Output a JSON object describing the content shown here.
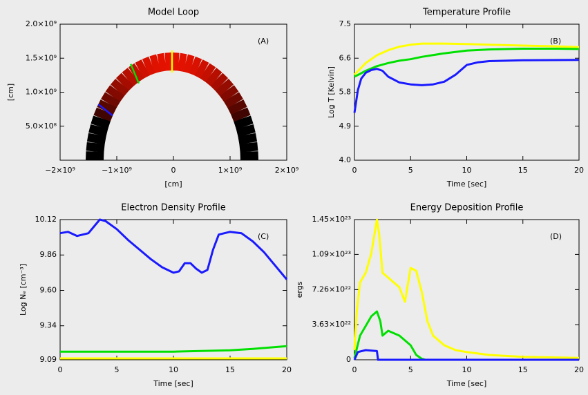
{
  "chart_data": [
    {
      "type": "loop",
      "title": "Model Loop",
      "xlabel": "[cm]",
      "ylabel": "[cm]",
      "annotation": "(A)",
      "xlim": [
        -2000000000.0,
        2000000000.0
      ],
      "ylim": [
        0,
        2000000000.0
      ],
      "xticks": [
        {
          "value": -2000000000.0,
          "label": "−2×10⁹"
        },
        {
          "value": -1000000000.0,
          "label": "−1×10⁹"
        },
        0,
        {
          "value": 1000000000.0,
          "label": "1×10⁹"
        },
        {
          "value": 2000000000.0,
          "label": "2×10⁹"
        }
      ],
      "yticks": [
        {
          "value": 500000000.0,
          "label": "5.0×10⁸"
        },
        {
          "value": 1000000000.0,
          "label": "1.0×10⁹"
        },
        {
          "value": 1500000000.0,
          "label": "1.5×10⁹"
        },
        {
          "value": 2000000000.0,
          "label": "2.0×10⁹"
        }
      ]
    },
    {
      "type": "line",
      "title": "Temperature Profile",
      "xlabel": "Time [sec]",
      "ylabel": "Log T [Kelvin]",
      "annotation": "(B)",
      "xlim": [
        0,
        20
      ],
      "ylim": [
        4,
        7.5
      ],
      "xticks": [
        0,
        5,
        10,
        15,
        20
      ],
      "yticks": [
        {
          "value": 4,
          "label": "4.0"
        },
        {
          "value": 4.875,
          "label": "4.9"
        },
        {
          "value": 5.75,
          "label": "5.8"
        },
        {
          "value": 6.625,
          "label": "6.6"
        },
        7.5
      ],
      "series": [
        {
          "color": "#ffff00",
          "x": [
            0,
            0.5,
            1,
            2,
            3,
            4,
            5,
            6,
            8,
            10,
            12,
            15,
            18,
            20
          ],
          "values": [
            6.2,
            6.35,
            6.5,
            6.7,
            6.83,
            6.92,
            6.97,
            7.0,
            7.0,
            6.99,
            6.97,
            6.95,
            6.93,
            6.91
          ]
        },
        {
          "color": "#00e000",
          "x": [
            0,
            0.5,
            1,
            2,
            3,
            4,
            5,
            6,
            8,
            10,
            12,
            15,
            18,
            20
          ],
          "values": [
            6.15,
            6.22,
            6.3,
            6.42,
            6.5,
            6.56,
            6.6,
            6.66,
            6.75,
            6.82,
            6.85,
            6.87,
            6.87,
            6.86
          ]
        },
        {
          "color": "#1a1aff",
          "x": [
            0,
            0.3,
            0.6,
            1,
            1.5,
            2,
            2.5,
            3,
            4,
            5,
            6,
            7,
            8,
            9,
            10,
            11,
            12,
            15,
            20
          ],
          "values": [
            5.22,
            5.8,
            6.1,
            6.25,
            6.32,
            6.35,
            6.3,
            6.15,
            6.0,
            5.95,
            5.93,
            5.95,
            6.02,
            6.2,
            6.45,
            6.52,
            6.55,
            6.57,
            6.58
          ]
        }
      ]
    },
    {
      "type": "line",
      "title": "Electron Density Profile",
      "xlabel": "Time [sec]",
      "ylabel": "Log Nₑ [cm⁻³]",
      "annotation": "(C)",
      "xlim": [
        0,
        20
      ],
      "ylim": [
        9.09,
        10.12
      ],
      "xticks": [
        0,
        5,
        10,
        15,
        20
      ],
      "yticks": [
        9.09,
        9.34,
        {
          "value": 9.6,
          "label": "9.60"
        },
        9.86,
        10.12
      ],
      "series": [
        {
          "color": "#ffff00",
          "x": [
            0,
            20
          ],
          "values": [
            9.1,
            9.1
          ]
        },
        {
          "color": "#00e000",
          "x": [
            0,
            5,
            10,
            15,
            17,
            20
          ],
          "values": [
            9.15,
            9.15,
            9.15,
            9.16,
            9.17,
            9.19
          ]
        },
        {
          "color": "#1a1aff",
          "x": [
            0,
            0.7,
            1.5,
            2.5,
            3.5,
            4,
            5,
            6,
            7,
            8,
            9,
            10,
            10.5,
            11,
            11.5,
            12,
            12.5,
            13,
            13.5,
            14,
            15,
            16,
            17,
            18,
            19,
            20
          ],
          "values": [
            10.02,
            10.03,
            10.0,
            10.02,
            10.12,
            10.11,
            10.05,
            9.97,
            9.9,
            9.83,
            9.77,
            9.73,
            9.74,
            9.8,
            9.8,
            9.76,
            9.73,
            9.75,
            9.9,
            10.01,
            10.03,
            10.02,
            9.96,
            9.88,
            9.78,
            9.68
          ]
        }
      ]
    },
    {
      "type": "line",
      "title": "Energy Deposition Profile",
      "xlabel": "Time [sec]",
      "ylabel": "ergs",
      "annotation": "(D)",
      "xlim": [
        0,
        20
      ],
      "ylim": [
        0,
        1.45e+23
      ],
      "xticks": [
        0,
        5,
        10,
        15,
        20
      ],
      "yticks": [
        0,
        {
          "value": 3.63e+22,
          "label": "3.63×10²²"
        },
        {
          "value": 7.26e+22,
          "label": "7.26×10²²"
        },
        {
          "value": 1.09e+23,
          "label": "1.09×10²³"
        },
        {
          "value": 1.45e+23,
          "label": "1.45×10²³"
        }
      ],
      "series": [
        {
          "color": "#ffff00",
          "x": [
            0,
            0.2,
            0.5,
            1,
            1.5,
            2,
            2.2,
            2.5,
            3,
            3.5,
            4,
            4.5,
            5,
            5.5,
            6,
            6.5,
            7,
            8,
            9,
            10,
            12,
            15,
            20
          ],
          "values": [
            1e+22,
            5e+22,
            8e+22,
            9e+22,
            1.1e+23,
            1.45e+23,
            1.3e+23,
            9e+22,
            8.5e+22,
            8e+22,
            7.5e+22,
            6e+22,
            9.5e+22,
            9.2e+22,
            7e+22,
            4e+22,
            2.5e+22,
            1.5e+22,
            1e+22,
            8e+21,
            5e+21,
            3e+21,
            2e+21
          ]
        },
        {
          "color": "#00e000",
          "x": [
            0,
            0.5,
            1,
            1.5,
            2,
            2.3,
            2.5,
            3,
            4,
            5,
            5.5,
            6,
            6.3
          ],
          "values": [
            2e+21,
            2.5e+22,
            3.5e+22,
            4.5e+22,
            5e+22,
            4e+22,
            2.5e+22,
            3e+22,
            2.5e+22,
            1.5e+22,
            5e+21,
            1e+21,
            0
          ]
        },
        {
          "color": "#1a1aff",
          "x": [
            0,
            0.3,
            1,
            2,
            2.1,
            20
          ],
          "values": [
            0,
            8e+21,
            1e+22,
            9e+21,
            0,
            0
          ]
        }
      ]
    }
  ]
}
